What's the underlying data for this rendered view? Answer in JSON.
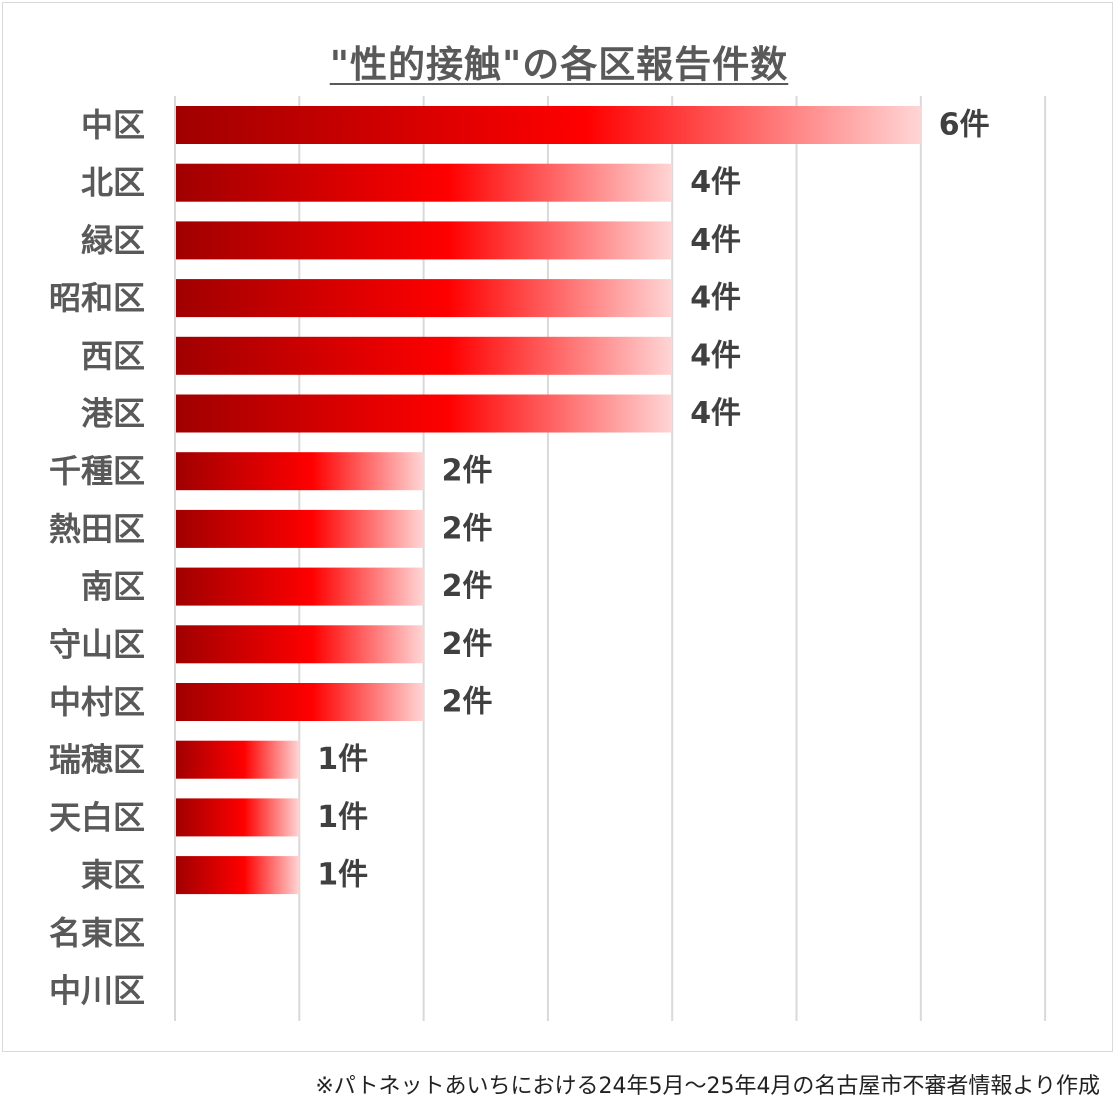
{
  "chart_data": {
    "type": "bar",
    "orientation": "horizontal",
    "title": "\"性的接触\"の各区報告件数",
    "categories": [
      "中区",
      "北区",
      "緑区",
      "昭和区",
      "西区",
      "港区",
      "千種区",
      "熱田区",
      "南区",
      "守山区",
      "中村区",
      "瑞穂区",
      "天白区",
      "東区",
      "名東区",
      "中川区"
    ],
    "values": [
      6,
      4,
      4,
      4,
      4,
      4,
      2,
      2,
      2,
      2,
      2,
      1,
      1,
      1,
      0,
      0
    ],
    "value_suffix": "件",
    "xlim": [
      0,
      7
    ],
    "grid": true,
    "legend": "none",
    "colors": {
      "bar_dark": "#a00000",
      "bar_mid": "#ff0000",
      "bar_light": "#ffd5d5",
      "grid": "#d9d9d9",
      "label": "#595959"
    }
  },
  "footnote": "※パトネットあいちにおける24年5月〜25年4月の名古屋市不審者情報より作成"
}
